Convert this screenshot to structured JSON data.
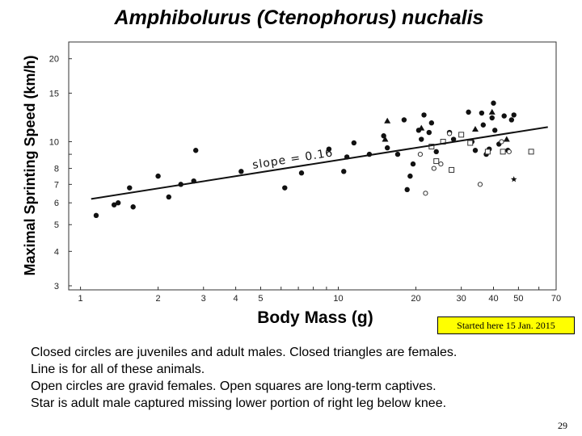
{
  "slide": {
    "title": "Amphibolurus (Ctenophorus) nuchalis",
    "note": "Started here 15 Jan. 2015",
    "caption_lines": [
      "Closed circles are juveniles and adult males.  Closed triangles are females.",
      "Line is for all of these animals.",
      "Open circles are gravid females.  Open squares are long-term captives.",
      "Star is adult male captured missing lower portion of right leg below knee."
    ],
    "page_number": "29"
  },
  "chart_data": {
    "type": "scatter",
    "title": "Amphibolurus (Ctenophorus) nuchalis",
    "xlabel": "Body Mass (g)",
    "ylabel": "Maximal Sprinting Speed (km/h)",
    "x_scale": "log",
    "y_scale": "log",
    "xlim": [
      0.9,
      70
    ],
    "ylim": [
      2.9,
      23
    ],
    "x_ticks": [
      1,
      2,
      3,
      4,
      5,
      6,
      7,
      8,
      9,
      10,
      20,
      30,
      40,
      50,
      60,
      70
    ],
    "x_tick_labels": [
      "1",
      "2",
      "3",
      "4",
      "5",
      "",
      "",
      "",
      "",
      "10",
      "20",
      "30",
      "40",
      "50",
      "",
      "70"
    ],
    "y_ticks": [
      3,
      4,
      5,
      6,
      7,
      8,
      9,
      10,
      15,
      20
    ],
    "y_tick_labels": [
      "3",
      "4",
      "5",
      "6",
      "7",
      "8",
      "",
      "10",
      "15",
      "20"
    ],
    "grid": false,
    "annotation": "slope = 0.16",
    "fit_line": {
      "x": [
        1.1,
        65
      ],
      "y": [
        6.2,
        11.3
      ]
    },
    "series": [
      {
        "marker": "closed-circle",
        "points": [
          [
            1.15,
            5.4
          ],
          [
            1.35,
            5.9
          ],
          [
            1.4,
            6.0
          ],
          [
            1.55,
            6.8
          ],
          [
            1.6,
            5.8
          ],
          [
            2.0,
            7.5
          ],
          [
            2.2,
            6.3
          ],
          [
            2.45,
            7.0
          ],
          [
            2.75,
            7.2
          ],
          [
            2.8,
            9.3
          ],
          [
            4.2,
            7.8
          ],
          [
            6.2,
            6.8
          ],
          [
            7.2,
            7.7
          ],
          [
            9.2,
            9.4
          ],
          [
            10.5,
            7.8
          ],
          [
            10.8,
            8.8
          ],
          [
            11.5,
            9.9
          ],
          [
            13.2,
            9.0
          ],
          [
            15.0,
            10.5
          ],
          [
            15.5,
            9.5
          ],
          [
            17.0,
            9.0
          ],
          [
            18.0,
            12.0
          ],
          [
            18.5,
            6.7
          ],
          [
            19.0,
            7.5
          ],
          [
            19.5,
            8.3
          ],
          [
            20.5,
            11.0
          ],
          [
            21.0,
            10.2
          ],
          [
            21.5,
            12.5
          ],
          [
            22.5,
            10.8
          ],
          [
            23.0,
            11.7
          ],
          [
            24.0,
            9.2
          ],
          [
            27.0,
            10.8
          ],
          [
            28.0,
            10.2
          ],
          [
            32.0,
            12.8
          ],
          [
            33.0,
            10.0
          ],
          [
            34.0,
            9.3
          ],
          [
            36.0,
            12.7
          ],
          [
            36.5,
            11.5
          ],
          [
            37.5,
            9.0
          ],
          [
            38.5,
            9.4
          ],
          [
            39.5,
            12.2
          ],
          [
            40.0,
            13.8
          ],
          [
            40.5,
            11.0
          ],
          [
            42.0,
            9.8
          ],
          [
            44.0,
            12.4
          ],
          [
            47.0,
            12.0
          ],
          [
            48.0,
            12.5
          ],
          [
            45.5,
            9.3
          ]
        ]
      },
      {
        "marker": "closed-triangle",
        "points": [
          [
            15.5,
            11.9
          ],
          [
            15.2,
            10.2
          ],
          [
            21.0,
            11.2
          ],
          [
            34.0,
            11.1
          ],
          [
            39.5,
            12.8
          ],
          [
            45.0,
            10.2
          ]
        ]
      },
      {
        "marker": "open-circle",
        "points": [
          [
            20.8,
            9.0
          ],
          [
            21.8,
            6.5
          ],
          [
            23.5,
            8.0
          ],
          [
            25.0,
            8.3
          ],
          [
            27.0,
            10.7
          ],
          [
            35.5,
            7.0
          ],
          [
            46.0,
            9.2
          ],
          [
            43.0,
            10.0
          ]
        ]
      },
      {
        "marker": "open-square",
        "points": [
          [
            23.0,
            9.6
          ],
          [
            24.0,
            8.5
          ],
          [
            25.5,
            10.0
          ],
          [
            27.5,
            7.9
          ],
          [
            30.0,
            10.6
          ],
          [
            32.5,
            9.9
          ],
          [
            38.0,
            9.2
          ],
          [
            43.5,
            9.2
          ],
          [
            56.0,
            9.2
          ]
        ]
      },
      {
        "marker": "star",
        "points": [
          [
            48.0,
            7.3
          ]
        ]
      }
    ]
  }
}
